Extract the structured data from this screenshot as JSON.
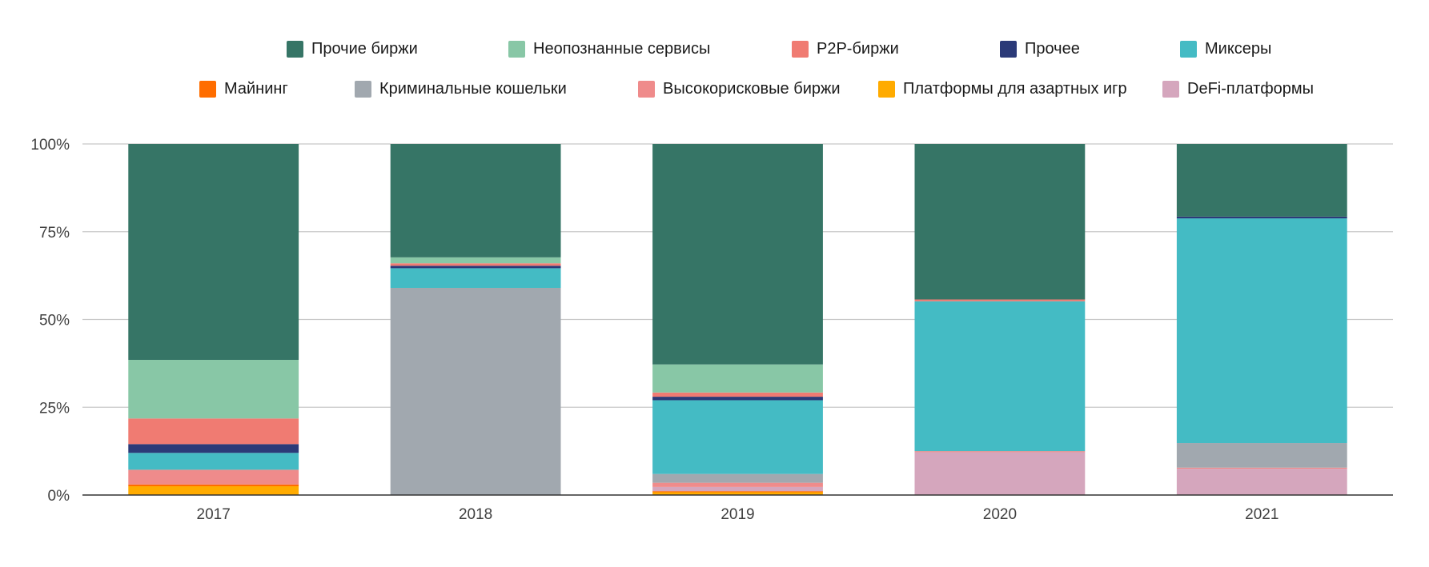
{
  "chart_data": {
    "type": "bar",
    "stacked": true,
    "percent": true,
    "categories": [
      "2017",
      "2018",
      "2019",
      "2020",
      "2021"
    ],
    "ylim": [
      0,
      100
    ],
    "y_ticks": [
      "0%",
      "25%",
      "50%",
      "75%",
      "100%"
    ],
    "grid": true,
    "legend_position": "top",
    "series": [
      {
        "name": "Платформы для азартных игр",
        "color": "#FFAB00",
        "values": [
          2.5,
          0,
          0.8,
          0,
          0
        ]
      },
      {
        "name": "Майнинг",
        "color": "#FF6D00",
        "values": [
          0.5,
          0,
          0.3,
          0,
          0
        ]
      },
      {
        "name": "DeFi-платформы",
        "color": "#D5A6BD",
        "values": [
          0,
          0,
          1.2,
          12.2,
          7.5
        ]
      },
      {
        "name": "Высокорисковые биржи",
        "color": "#EF8B8B",
        "values": [
          4.2,
          0,
          1.2,
          0.3,
          0.3
        ]
      },
      {
        "name": "Криминальные кошельки",
        "color": "#A1A8AF",
        "values": [
          0,
          59.0,
          2.5,
          0,
          7.0
        ]
      },
      {
        "name": "Миксеры",
        "color": "#44BBC4",
        "values": [
          4.8,
          5.6,
          21.0,
          42.7,
          64.0
        ]
      },
      {
        "name": "Прочее",
        "color": "#2B3A78",
        "values": [
          2.5,
          0.7,
          1.0,
          0,
          0.5
        ]
      },
      {
        "name": "P2P-биржи",
        "color": "#F07B72",
        "values": [
          7.3,
          0.7,
          1.2,
          0.5,
          0
        ]
      },
      {
        "name": "Неопознанные сервисы",
        "color": "#88C7A6",
        "values": [
          16.7,
          1.7,
          8.0,
          0,
          0
        ]
      },
      {
        "name": "Прочие биржи",
        "color": "#367566",
        "values": [
          61.5,
          32.3,
          62.8,
          44.3,
          20.7
        ]
      }
    ]
  },
  "legend": {
    "row1": [
      {
        "label": "Прочие биржи",
        "color": "#367566"
      },
      {
        "label": "Неопознанные сервисы",
        "color": "#88C7A6"
      },
      {
        "label": "P2P-биржи",
        "color": "#F07B72"
      },
      {
        "label": "Прочее",
        "color": "#2B3A78"
      },
      {
        "label": "Миксеры",
        "color": "#44BBC4"
      }
    ],
    "row2": [
      {
        "label": "Майнинг",
        "color": "#FF6D00"
      },
      {
        "label": "Криминальные кошельки",
        "color": "#A1A8AF"
      },
      {
        "label": "Высокорисковые биржи",
        "color": "#EF8B8B"
      },
      {
        "label": "Платформы для азартных игр",
        "color": "#FFAB00"
      },
      {
        "label": "DeFi-платформы",
        "color": "#D5A6BD"
      }
    ]
  }
}
